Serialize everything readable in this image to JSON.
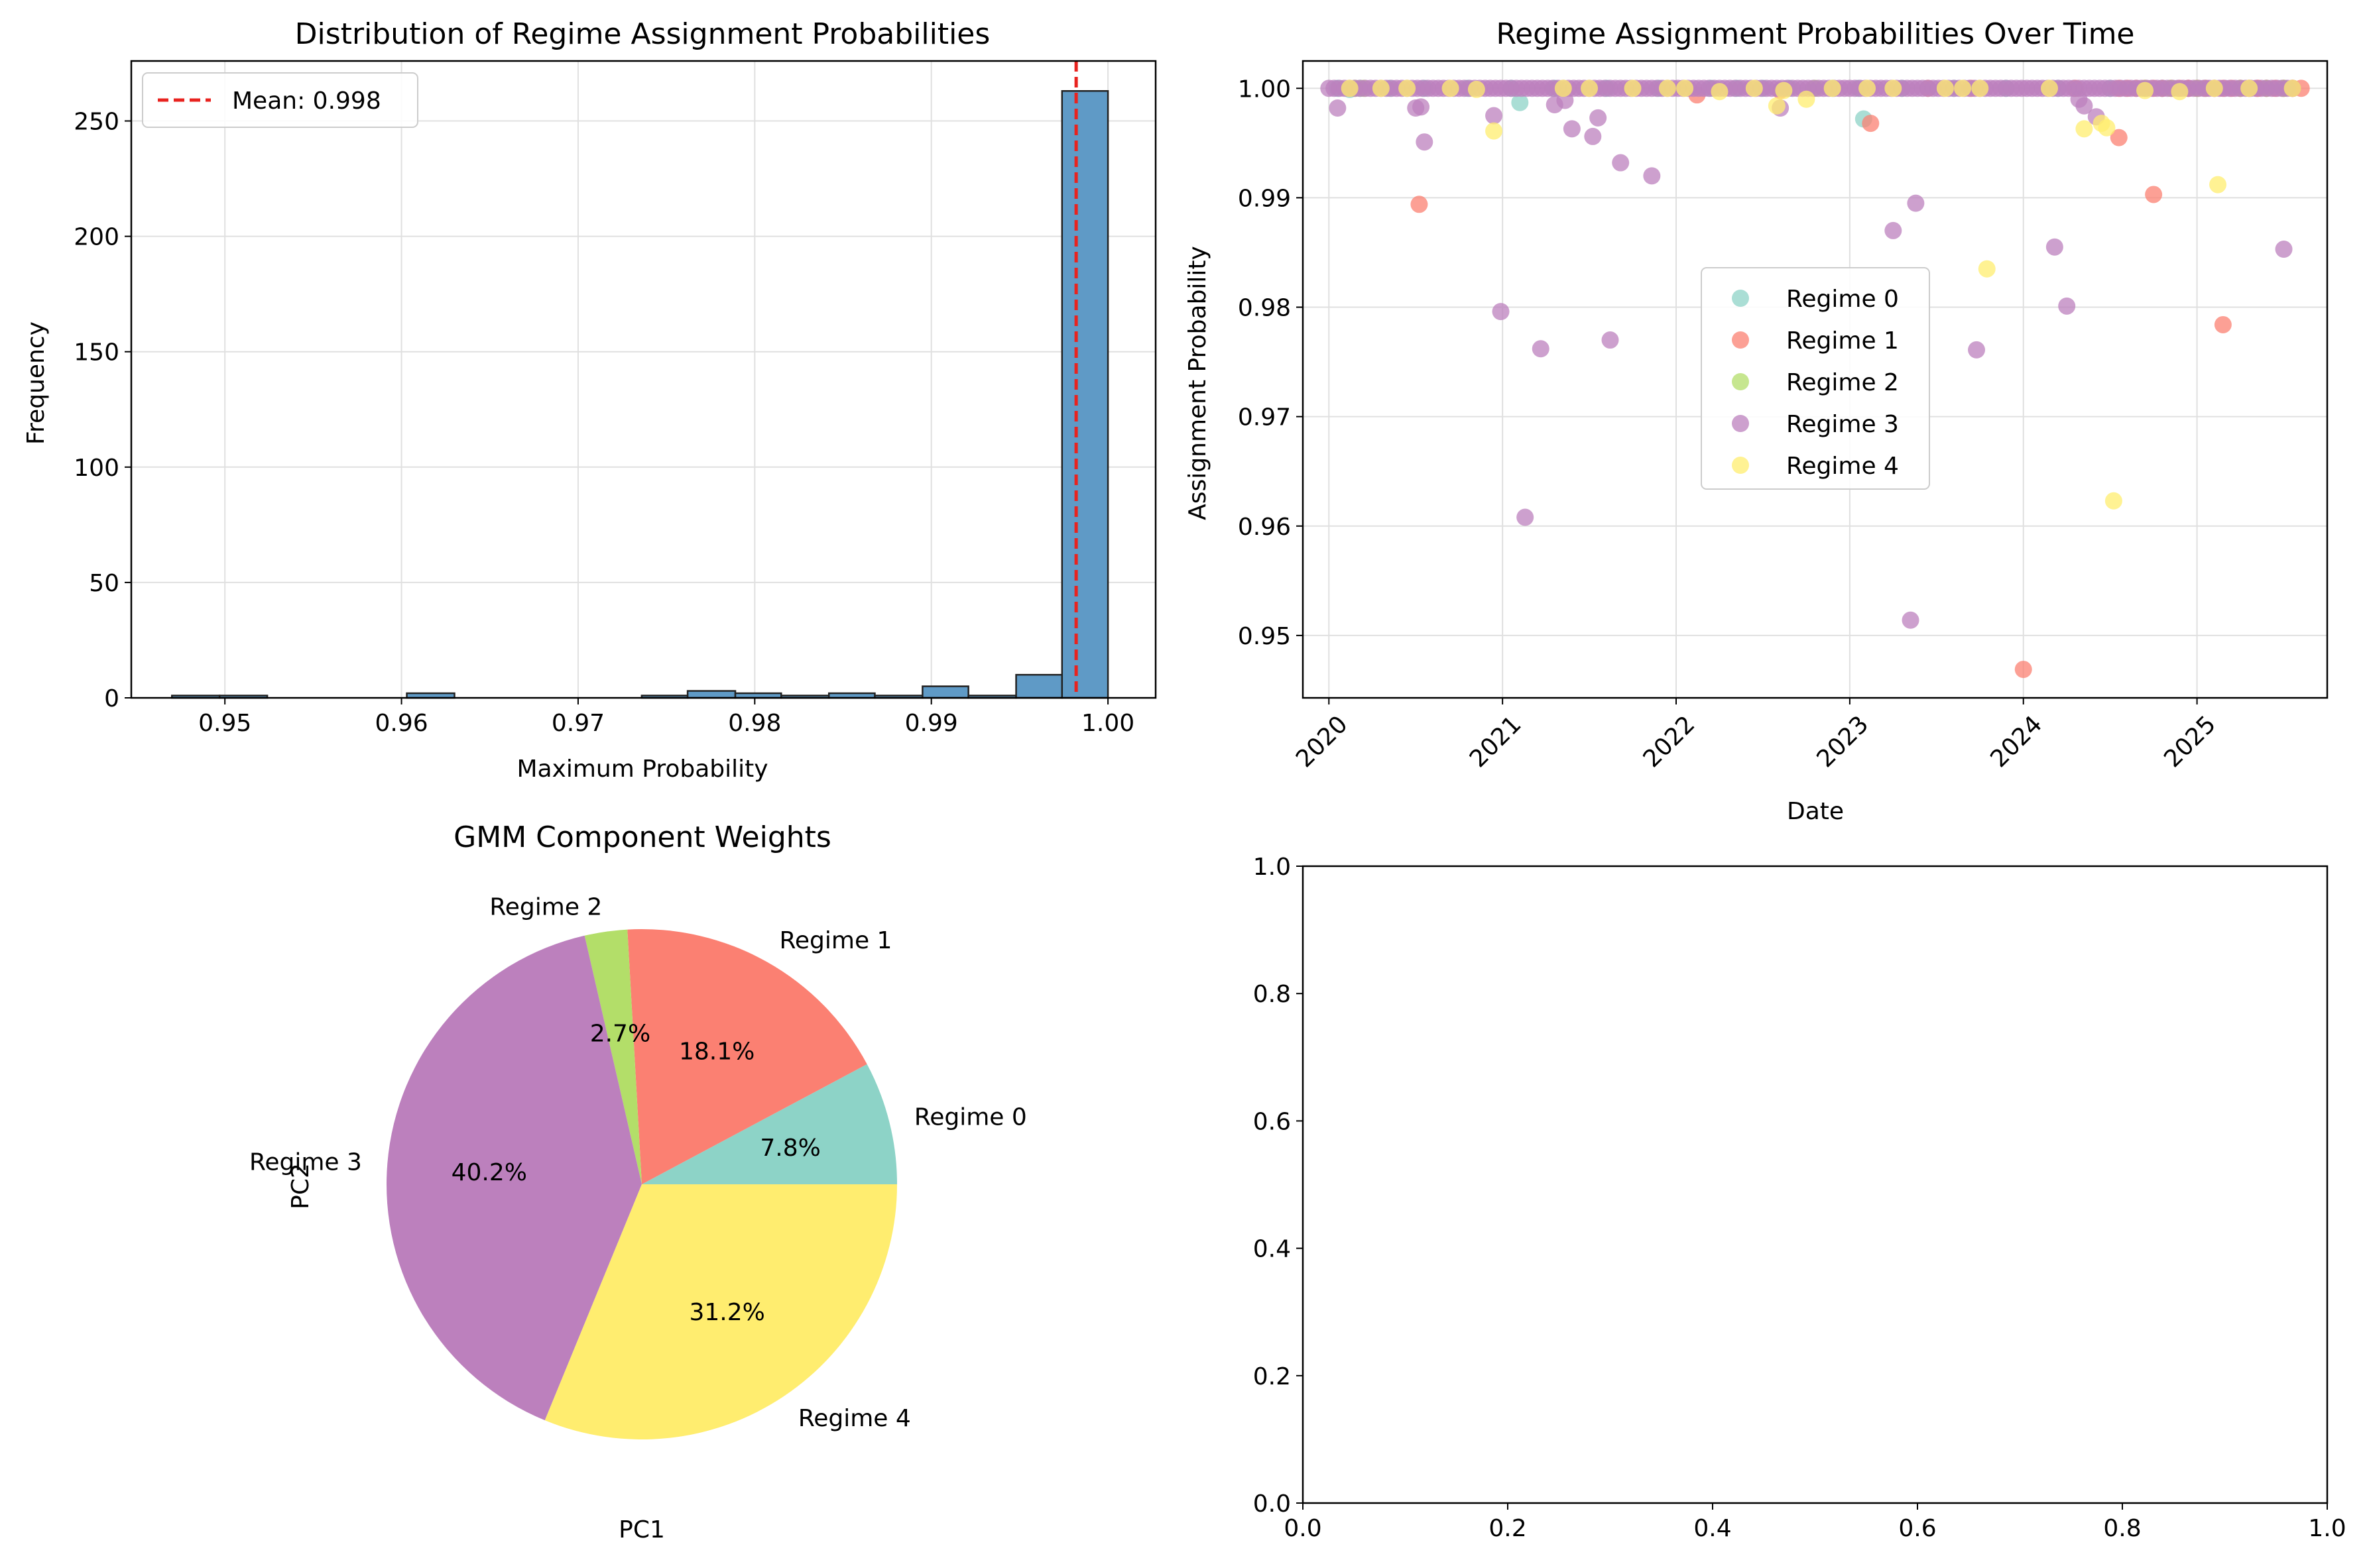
{
  "histogram": {
    "type": "bar",
    "title": "Distribution of Regime Assignment Probabilities",
    "xlabel": "Maximum Probability",
    "ylabel": "Frequency",
    "xlim": [
      0.9447,
      1.0027
    ],
    "ylim": [
      0,
      276
    ],
    "xticks": [
      0.95,
      0.96,
      0.97,
      0.98,
      0.99,
      1.0
    ],
    "xtick_labels": [
      "0.95",
      "0.96",
      "0.97",
      "0.98",
      "0.99",
      "1.00"
    ],
    "yticks": [
      0,
      50,
      100,
      150,
      200,
      250
    ],
    "grid": true,
    "bin_edges": [
      0.947,
      0.9497,
      0.9524,
      0.955,
      0.9577,
      0.9603,
      0.963,
      0.9656,
      0.9683,
      0.9709,
      0.9736,
      0.9762,
      0.9789,
      0.9815,
      0.9842,
      0.9868,
      0.9895,
      0.9921,
      0.9948,
      0.9974,
      1.0
    ],
    "counts": [
      1,
      1,
      0,
      0,
      0,
      2,
      0,
      0,
      0,
      0,
      1,
      3,
      2,
      1,
      2,
      1,
      5,
      1,
      10,
      263
    ],
    "bar_color": "#5f9ac6",
    "mean_line": {
      "value": 0.9982,
      "label": "Mean: 0.998",
      "color": "#e8231f"
    },
    "legend_position": "upper left"
  },
  "scatter": {
    "type": "scatter",
    "title": "Regime Assignment Probabilities Over Time",
    "xlabel": "Date",
    "ylabel": "Assignment Probability",
    "xlim": [
      2019.85,
      2025.75
    ],
    "ylim": [
      0.9443,
      1.0025
    ],
    "xticks": [
      2020,
      2021,
      2022,
      2023,
      2024,
      2025
    ],
    "xtick_labels": [
      "2020",
      "2021",
      "2022",
      "2023",
      "2024",
      "2025"
    ],
    "yticks": [
      0.95,
      0.96,
      0.97,
      0.98,
      0.99,
      1.0
    ],
    "ytick_labels": [
      "0.95",
      "0.96",
      "0.97",
      "0.98",
      "0.99",
      "1.00"
    ],
    "grid": true,
    "legend_position": "center",
    "series": [
      {
        "name": "Regime 0",
        "color": "#8dd3c7",
        "x": [
          2020.05,
          2020.12,
          2020.18,
          2020.35,
          2020.55,
          2020.8,
          2021.05,
          2021.1,
          2021.3,
          2021.6,
          2021.9,
          2022.2,
          2022.35,
          2022.5,
          2022.65,
          2022.9,
          2023.05,
          2023.08,
          2023.3,
          2023.6,
          2023.9,
          2024.2,
          2024.5,
          2024.8,
          2025.05,
          2025.3,
          2025.5
        ],
        "y": [
          1.0,
          0.9999,
          1.0,
          1.0,
          1.0,
          1.0,
          1.0,
          0.9987,
          1.0,
          1.0,
          1.0,
          1.0,
          1.0,
          1.0,
          1.0,
          1.0,
          1.0,
          0.9972,
          1.0,
          1.0,
          1.0,
          1.0,
          1.0,
          1.0,
          1.0,
          1.0,
          1.0
        ]
      },
      {
        "name": "Regime 1",
        "color": "#fb8072",
        "x": [
          2020.52,
          2022.12,
          2022.6,
          2023.12,
          2023.45,
          2023.7,
          2024.0,
          2024.3,
          2024.55,
          2024.75,
          2024.95,
          2025.15,
          2025.35,
          2025.55
        ],
        "y": [
          0.9894,
          0.9994,
          0.9998,
          0.9968,
          1.0,
          1.0,
          0.9469,
          1.0,
          0.9955,
          0.9903,
          1.0,
          0.9784,
          1.0,
          1.0
        ],
        "band": {
          "from": 2024.55,
          "to": 2025.6,
          "step": 0.05,
          "y": 1.0
        }
      },
      {
        "name": "Regime 2",
        "color": "#b3de69",
        "x": [
          2020.15,
          2020.2,
          2022.8,
          2024.7,
          2024.85,
          2025.0,
          2025.25,
          2025.4,
          2025.5
        ],
        "y": [
          1.0,
          1.0,
          1.0,
          1.0,
          1.0,
          1.0,
          1.0,
          1.0,
          1.0
        ]
      },
      {
        "name": "Regime 3",
        "color": "#bc80bd",
        "x": [
          2020.05,
          2020.5,
          2020.53,
          2020.55,
          2020.95,
          2020.99,
          2021.13,
          2021.22,
          2021.3,
          2021.36,
          2021.4,
          2021.52,
          2021.55,
          2021.62,
          2021.68,
          2021.86,
          2022.6,
          2023.25,
          2023.35,
          2023.38,
          2023.73,
          2024.18,
          2024.25,
          2024.32,
          2024.35,
          2024.42,
          2025.5
        ],
        "y": [
          0.9982,
          0.9982,
          0.9983,
          0.9951,
          0.9975,
          0.9796,
          0.9608,
          0.9762,
          0.9985,
          0.9989,
          0.9963,
          0.9956,
          0.9973,
          0.977,
          0.9932,
          0.992,
          0.9982,
          0.987,
          0.9514,
          0.9895,
          0.9761,
          0.9855,
          0.9801,
          0.999,
          0.9984,
          0.9974,
          0.9853
        ],
        "band": {
          "from": 2020.0,
          "to": 2025.55,
          "step": 0.03,
          "y": 1.0
        }
      },
      {
        "name": "Regime 4",
        "color": "#ffed6f",
        "x": [
          2020.12,
          2020.3,
          2020.45,
          2020.7,
          2020.85,
          2020.95,
          2021.35,
          2021.5,
          2021.75,
          2021.95,
          2022.05,
          2022.25,
          2022.45,
          2022.58,
          2022.62,
          2022.75,
          2022.9,
          2023.1,
          2023.25,
          2023.55,
          2023.65,
          2023.75,
          2023.79,
          2024.15,
          2024.35,
          2024.45,
          2024.48,
          2024.52,
          2024.7,
          2024.9,
          2025.1,
          2025.12,
          2025.3,
          2025.55
        ],
        "y": [
          1.0,
          1.0,
          1.0,
          1.0,
          0.9999,
          0.9961,
          1.0,
          1.0,
          1.0,
          1.0,
          1.0,
          0.9997,
          1.0,
          0.9984,
          0.9998,
          0.999,
          1.0,
          1.0,
          1.0,
          1.0,
          1.0,
          1.0,
          0.9835,
          1.0,
          0.9963,
          0.9968,
          0.9964,
          0.9623,
          0.9998,
          0.9997,
          1.0,
          0.9912,
          1.0,
          1.0
        ]
      }
    ]
  },
  "pie": {
    "type": "pie",
    "title": "GMM Component Weights",
    "xlabel": "PC1",
    "ylabel": "PC2",
    "slices": [
      {
        "label": "Regime 0",
        "value": 7.8,
        "pct": "7.8%",
        "color": "#8dd3c7"
      },
      {
        "label": "Regime 1",
        "value": 18.1,
        "pct": "18.1%",
        "color": "#fb8072"
      },
      {
        "label": "Regime 2",
        "value": 2.7,
        "pct": "2.7%",
        "color": "#b3de69"
      },
      {
        "label": "Regime 3",
        "value": 40.2,
        "pct": "40.2%",
        "color": "#bc80bd"
      },
      {
        "label": "Regime 4",
        "value": 31.2,
        "pct": "31.2%",
        "color": "#ffed6f"
      }
    ],
    "start_angle_deg": 0,
    "direction": "counterclockwise"
  },
  "empty_axes": {
    "type": "line",
    "xlim": [
      0,
      1
    ],
    "ylim": [
      0,
      1
    ],
    "xticks": [
      0.0,
      0.2,
      0.4,
      0.6,
      0.8,
      1.0
    ],
    "xtick_labels": [
      "0.0",
      "0.2",
      "0.4",
      "0.6",
      "0.8",
      "1.0"
    ],
    "yticks": [
      0.0,
      0.2,
      0.4,
      0.6,
      0.8,
      1.0
    ],
    "ytick_labels": [
      "0.0",
      "0.2",
      "0.4",
      "0.6",
      "0.8",
      "1.0"
    ]
  }
}
